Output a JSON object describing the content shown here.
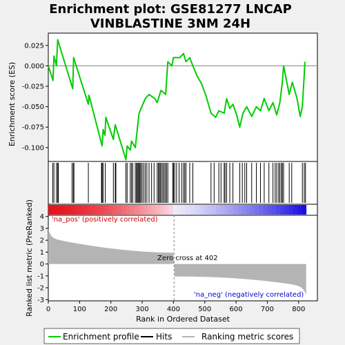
{
  "title_line1": "Enrichment plot: GSE81277 LNCAP",
  "title_line2": "VINBLASTINE 3NM 24H",
  "chart_data": {
    "type": "line",
    "x_label": "Rank in Ordered Dataset",
    "y_label_top": "Enrichment score (ES)",
    "y_label_bottom": "Ranked list metric (PreRanked)",
    "x_range": [
      0,
      860
    ],
    "x_ticks": [
      "0",
      "100",
      "200",
      "300",
      "400",
      "500",
      "600",
      "700",
      "800"
    ],
    "es_y_range": [
      -0.117,
      0.04
    ],
    "es_ticks": [
      "0.025",
      "0.000",
      "-0.025",
      "-0.050",
      "-0.075",
      "-0.100"
    ],
    "es_tick_values": [
      0.025,
      0.0,
      -0.025,
      -0.05,
      -0.075,
      -0.1
    ],
    "metric_y_range": [
      -3.1,
      4.1
    ],
    "metric_ticks": [
      "4",
      "3",
      "2",
      "1",
      "0",
      "-1",
      "-2",
      "-3"
    ],
    "metric_tick_values": [
      4,
      3,
      2,
      1,
      0,
      -1,
      -2,
      -3
    ],
    "n_genes": 824,
    "zero_cross": 402,
    "zero_cross_label": "Zero cross at 402",
    "pos_label": "'na_pos' (positively correlated)",
    "neg_label": "'na_neg' (negatively correlated)",
    "es_curve": [
      [
        0,
        0.0
      ],
      [
        15,
        -0.018
      ],
      [
        18,
        0.012
      ],
      [
        26,
        0.0
      ],
      [
        30,
        0.032
      ],
      [
        78,
        -0.028
      ],
      [
        81,
        0.01
      ],
      [
        128,
        -0.047
      ],
      [
        130,
        -0.036
      ],
      [
        172,
        -0.098
      ],
      [
        175,
        -0.078
      ],
      [
        181,
        -0.085
      ],
      [
        184,
        -0.063
      ],
      [
        208,
        -0.09
      ],
      [
        214,
        -0.072
      ],
      [
        248,
        -0.115
      ],
      [
        252,
        -0.098
      ],
      [
        262,
        -0.103
      ],
      [
        266,
        -0.092
      ],
      [
        278,
        -0.1
      ],
      [
        290,
        -0.058
      ],
      [
        310,
        -0.04
      ],
      [
        322,
        -0.035
      ],
      [
        340,
        -0.04
      ],
      [
        348,
        -0.045
      ],
      [
        360,
        -0.03
      ],
      [
        375,
        -0.035
      ],
      [
        382,
        0.005
      ],
      [
        395,
        0.0
      ],
      [
        400,
        0.01
      ],
      [
        420,
        0.01
      ],
      [
        432,
        0.015
      ],
      [
        440,
        0.005
      ],
      [
        452,
        0.01
      ],
      [
        462,
        0.0
      ],
      [
        475,
        -0.012
      ],
      [
        490,
        -0.022
      ],
      [
        505,
        -0.038
      ],
      [
        520,
        -0.058
      ],
      [
        535,
        -0.063
      ],
      [
        545,
        -0.055
      ],
      [
        562,
        -0.058
      ],
      [
        570,
        -0.04
      ],
      [
        580,
        -0.052
      ],
      [
        590,
        -0.047
      ],
      [
        602,
        -0.06
      ],
      [
        612,
        -0.075
      ],
      [
        622,
        -0.058
      ],
      [
        634,
        -0.05
      ],
      [
        650,
        -0.062
      ],
      [
        665,
        -0.05
      ],
      [
        678,
        -0.055
      ],
      [
        690,
        -0.04
      ],
      [
        705,
        -0.055
      ],
      [
        718,
        -0.045
      ],
      [
        730,
        -0.06
      ],
      [
        740,
        -0.045
      ],
      [
        748,
        -0.02
      ],
      [
        752,
        0.0
      ],
      [
        770,
        -0.035
      ],
      [
        780,
        -0.02
      ],
      [
        795,
        -0.04
      ],
      [
        805,
        -0.062
      ],
      [
        812,
        -0.05
      ],
      [
        818,
        -0.01
      ],
      [
        820,
        0.005
      ]
    ],
    "hits": [
      14,
      18,
      26,
      30,
      32,
      76,
      80,
      82,
      128,
      170,
      172,
      175,
      182,
      208,
      214,
      216,
      248,
      252,
      262,
      266,
      270,
      278,
      282,
      284,
      287,
      290,
      293,
      296,
      300,
      305,
      310,
      315,
      322,
      330,
      338,
      348,
      352,
      355,
      358,
      362,
      366,
      370,
      374,
      378,
      382,
      398,
      400,
      404,
      410,
      418,
      426,
      432,
      436,
      440,
      452,
      462,
      520,
      530,
      545,
      552,
      562,
      565,
      570,
      580,
      590,
      612,
      620,
      628,
      634,
      650,
      665,
      678,
      690,
      705,
      718,
      725,
      730,
      736,
      740,
      745,
      748,
      752,
      770,
      778,
      812,
      818,
      822
    ]
  },
  "legend": {
    "enrichment_profile": "Enrichment profile",
    "hits": "Hits",
    "ranking_metric": "Ranking metric scores"
  },
  "colors": {
    "es_line": "#00cc00",
    "hit_line": "#000000",
    "metric_fill": "#b4b4b4",
    "zero_line": "#808080",
    "pos_text": "#cc0000",
    "neg_text": "#0000cc"
  }
}
